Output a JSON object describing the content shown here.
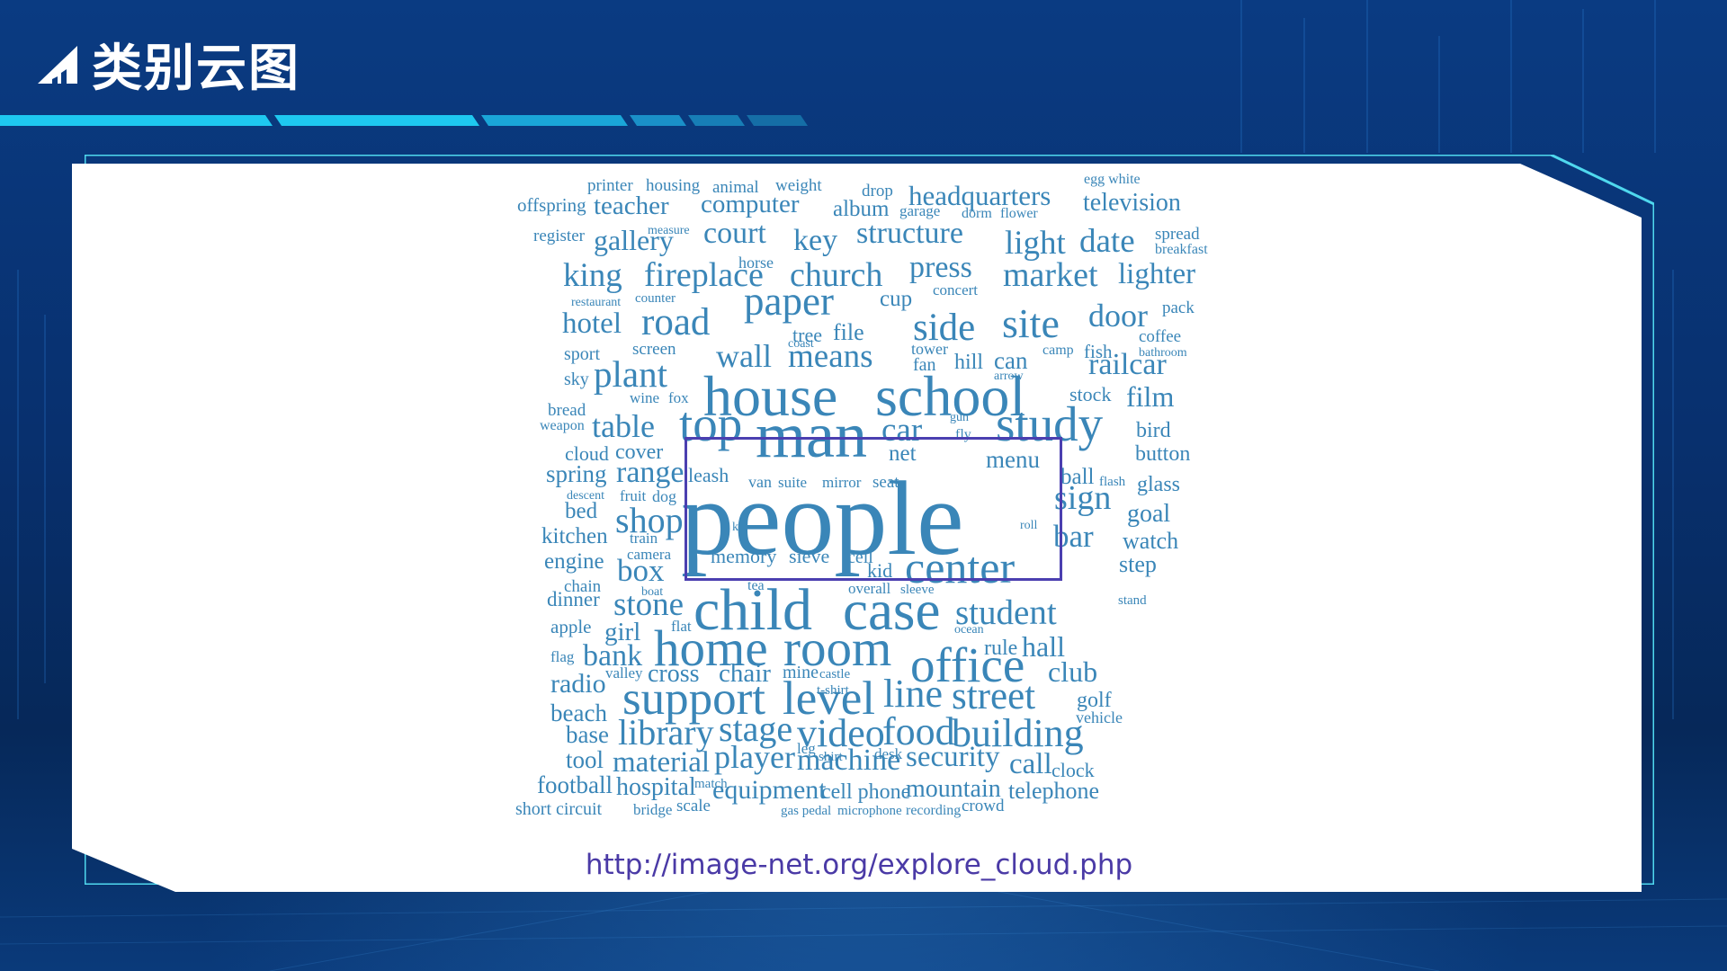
{
  "slide": {
    "title": "类别云图",
    "source_url": "http://image-net.org/explore_cloud.php"
  },
  "colors": {
    "background": "#0a3b82",
    "accent": "#1ec8f0",
    "word": "#3a86b8",
    "highlight": "#4b3fb0",
    "link": "#4a3aa6"
  },
  "icons": {
    "title_marker": "triangle-bars-icon"
  },
  "word_cloud": {
    "words": [
      "printer",
      "housing",
      "animal",
      "weight",
      "drop",
      "headquarters",
      "egg white",
      "offspring",
      "teacher",
      "computer",
      "album",
      "garage",
      "dorm",
      "flower",
      "television",
      "register",
      "gallery",
      "measure",
      "court",
      "key",
      "structure",
      "light",
      "date",
      "spread",
      "breakfast",
      "king",
      "fireplace",
      "horse",
      "church",
      "press",
      "market",
      "lighter",
      "restaurant",
      "counter",
      "paper",
      "cup",
      "concert",
      "pack",
      "hotel",
      "road",
      "tree",
      "file",
      "side",
      "site",
      "door",
      "coffee",
      "sport",
      "screen",
      "coast",
      "wall",
      "means",
      "tower",
      "camp",
      "fish",
      "bathroom",
      "sky",
      "plant",
      "fan",
      "hill",
      "can",
      "arrow",
      "railcar",
      "wine",
      "fox",
      "house",
      "school",
      "stock",
      "film",
      "bread",
      "weapon",
      "table",
      "top",
      "man",
      "car",
      "gun",
      "fly",
      "study",
      "bird",
      "cloud",
      "cover",
      "net",
      "menu",
      "button",
      "spring",
      "range",
      "leash",
      "van",
      "suite",
      "mirror",
      "seat",
      "ball",
      "flash",
      "glass",
      "descent",
      "fruit",
      "dog",
      "people",
      "sign",
      "bed",
      "kit",
      "roll",
      "goal",
      "kitchen",
      "shop",
      "train",
      "bar",
      "watch",
      "engine",
      "camera",
      "memory",
      "sieve",
      "cell",
      "kid",
      "center",
      "box",
      "step",
      "chain",
      "tea",
      "overall",
      "sleeve",
      "boat",
      "dinner",
      "stone",
      "child",
      "case",
      "stand",
      "student",
      "apple",
      "girl",
      "flat",
      "ocean",
      "flag",
      "bank",
      "home",
      "room",
      "rule",
      "hall",
      "valley",
      "cross",
      "chair",
      "mine",
      "castle",
      "office",
      "club",
      "radio",
      "t-shirt",
      "support",
      "level",
      "line",
      "street",
      "golf",
      "beach",
      "vehicle",
      "base",
      "library",
      "stage",
      "video",
      "food",
      "building",
      "tool",
      "material",
      "leg",
      "shirt",
      "desk",
      "player",
      "machine",
      "security",
      "call",
      "clock",
      "football",
      "hospital",
      "match",
      "equipment",
      "cell phone",
      "mountain",
      "telephone",
      "short circuit",
      "bridge",
      "scale",
      "gas pedal",
      "microphone",
      "recording",
      "crowd"
    ]
  }
}
